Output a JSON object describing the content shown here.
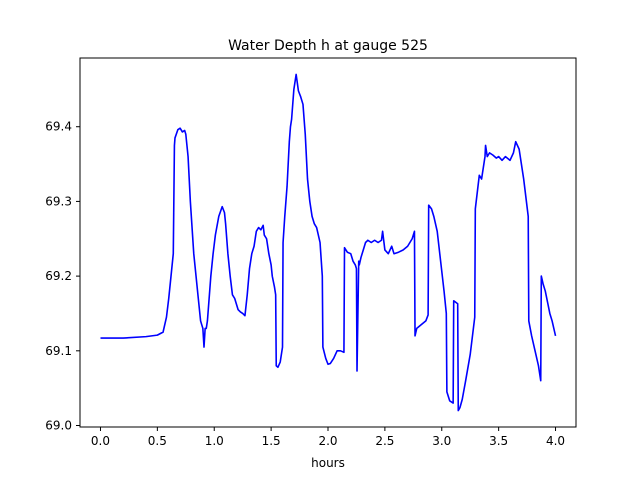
{
  "chart_data": {
    "type": "line",
    "title": "Water Depth h at gauge 525",
    "xlabel": "hours",
    "ylabel": "",
    "xlim": [
      -0.18,
      4.18
    ],
    "ylim": [
      68.998,
      69.492
    ],
    "xticks": [
      0.0,
      0.5,
      1.0,
      1.5,
      2.0,
      2.5,
      3.0,
      3.5,
      4.0
    ],
    "xtick_labels": [
      "0.0",
      "0.5",
      "1.0",
      "1.5",
      "2.0",
      "2.5",
      "3.0",
      "3.5",
      "4.0"
    ],
    "yticks": [
      69.0,
      69.1,
      69.2,
      69.3,
      69.4
    ],
    "ytick_labels": [
      "69.0",
      "69.1",
      "69.2",
      "69.3",
      "69.4"
    ],
    "grid": false,
    "legend": "none",
    "series": [
      {
        "color": "#0000ff",
        "x": [
          0.0,
          0.2,
          0.4,
          0.5,
          0.55,
          0.58,
          0.6,
          0.62,
          0.64,
          0.65,
          0.655,
          0.68,
          0.7,
          0.72,
          0.74,
          0.75,
          0.77,
          0.79,
          0.82,
          0.86,
          0.88,
          0.89,
          0.9,
          0.91,
          0.92,
          0.93,
          0.94,
          0.96,
          0.97,
          0.99,
          1.01,
          1.04,
          1.07,
          1.09,
          1.1,
          1.12,
          1.14,
          1.16,
          1.18,
          1.19,
          1.21,
          1.23,
          1.25,
          1.27,
          1.29,
          1.31,
          1.33,
          1.35,
          1.37,
          1.39,
          1.41,
          1.43,
          1.44,
          1.46,
          1.48,
          1.5,
          1.51,
          1.53,
          1.54,
          1.545,
          1.56,
          1.58,
          1.6,
          1.605,
          1.62,
          1.64,
          1.66,
          1.67,
          1.68,
          1.7,
          1.72,
          1.74,
          1.76,
          1.78,
          1.8,
          1.82,
          1.84,
          1.86,
          1.88,
          1.9,
          1.93,
          1.95,
          1.955,
          1.98,
          2.0,
          2.02,
          2.05,
          2.08,
          2.11,
          2.14,
          2.145,
          2.17,
          2.2,
          2.22,
          2.24,
          2.25,
          2.255,
          2.27,
          2.275,
          2.29,
          2.31,
          2.33,
          2.35,
          2.38,
          2.41,
          2.44,
          2.47,
          2.48,
          2.5,
          2.53,
          2.56,
          2.58,
          2.62,
          2.66,
          2.7,
          2.74,
          2.76,
          2.765,
          2.78,
          2.82,
          2.86,
          2.88,
          2.885,
          2.91,
          2.93,
          2.96,
          2.99,
          3.02,
          3.04,
          3.045,
          3.07,
          3.1,
          3.105,
          3.14,
          3.145,
          3.16,
          3.18,
          3.21,
          3.25,
          3.29,
          3.295,
          3.33,
          3.35,
          3.37,
          3.38,
          3.385,
          3.4,
          3.42,
          3.45,
          3.48,
          3.5,
          3.53,
          3.56,
          3.6,
          3.63,
          3.65,
          3.68,
          3.72,
          3.76,
          3.765,
          3.79,
          3.82,
          3.85,
          3.87,
          3.875,
          3.89,
          3.91,
          3.93,
          3.95,
          3.97,
          4.0
        ],
        "y": [
          69.117,
          69.117,
          69.119,
          69.121,
          69.125,
          69.145,
          69.17,
          69.2,
          69.23,
          69.375,
          69.385,
          69.396,
          69.398,
          69.393,
          69.395,
          69.39,
          69.36,
          69.3,
          69.23,
          69.17,
          69.14,
          69.135,
          69.13,
          69.105,
          69.13,
          69.13,
          69.14,
          69.18,
          69.2,
          69.23,
          69.255,
          69.28,
          69.293,
          69.285,
          69.27,
          69.23,
          69.2,
          69.175,
          69.17,
          69.165,
          69.155,
          69.152,
          69.15,
          69.147,
          69.175,
          69.21,
          69.23,
          69.24,
          69.26,
          69.265,
          69.262,
          69.268,
          69.255,
          69.25,
          69.23,
          69.215,
          69.2,
          69.185,
          69.175,
          69.08,
          69.078,
          69.085,
          69.105,
          69.245,
          69.28,
          69.32,
          69.38,
          69.4,
          69.41,
          69.45,
          69.47,
          69.448,
          69.44,
          69.43,
          69.39,
          69.33,
          69.3,
          69.28,
          69.27,
          69.265,
          69.245,
          69.2,
          69.105,
          69.09,
          69.082,
          69.083,
          69.09,
          69.1,
          69.1,
          69.098,
          69.238,
          69.232,
          69.23,
          69.22,
          69.215,
          69.21,
          69.073,
          69.22,
          69.215,
          69.225,
          69.235,
          69.245,
          69.248,
          69.245,
          69.248,
          69.245,
          69.248,
          69.26,
          69.235,
          69.23,
          69.24,
          69.23,
          69.232,
          69.235,
          69.24,
          69.25,
          69.26,
          69.12,
          69.13,
          69.135,
          69.14,
          69.148,
          69.295,
          69.29,
          69.28,
          69.26,
          69.22,
          69.18,
          69.15,
          69.045,
          69.033,
          69.03,
          69.167,
          69.163,
          69.02,
          69.024,
          69.035,
          69.06,
          69.095,
          69.145,
          69.29,
          69.335,
          69.33,
          69.35,
          69.36,
          69.375,
          69.36,
          69.365,
          69.362,
          69.358,
          69.36,
          69.355,
          69.36,
          69.355,
          69.365,
          69.38,
          69.37,
          69.33,
          69.28,
          69.14,
          69.12,
          69.1,
          69.08,
          69.06,
          69.2,
          69.19,
          69.18,
          69.165,
          69.15,
          69.14,
          69.12
        ]
      }
    ]
  }
}
